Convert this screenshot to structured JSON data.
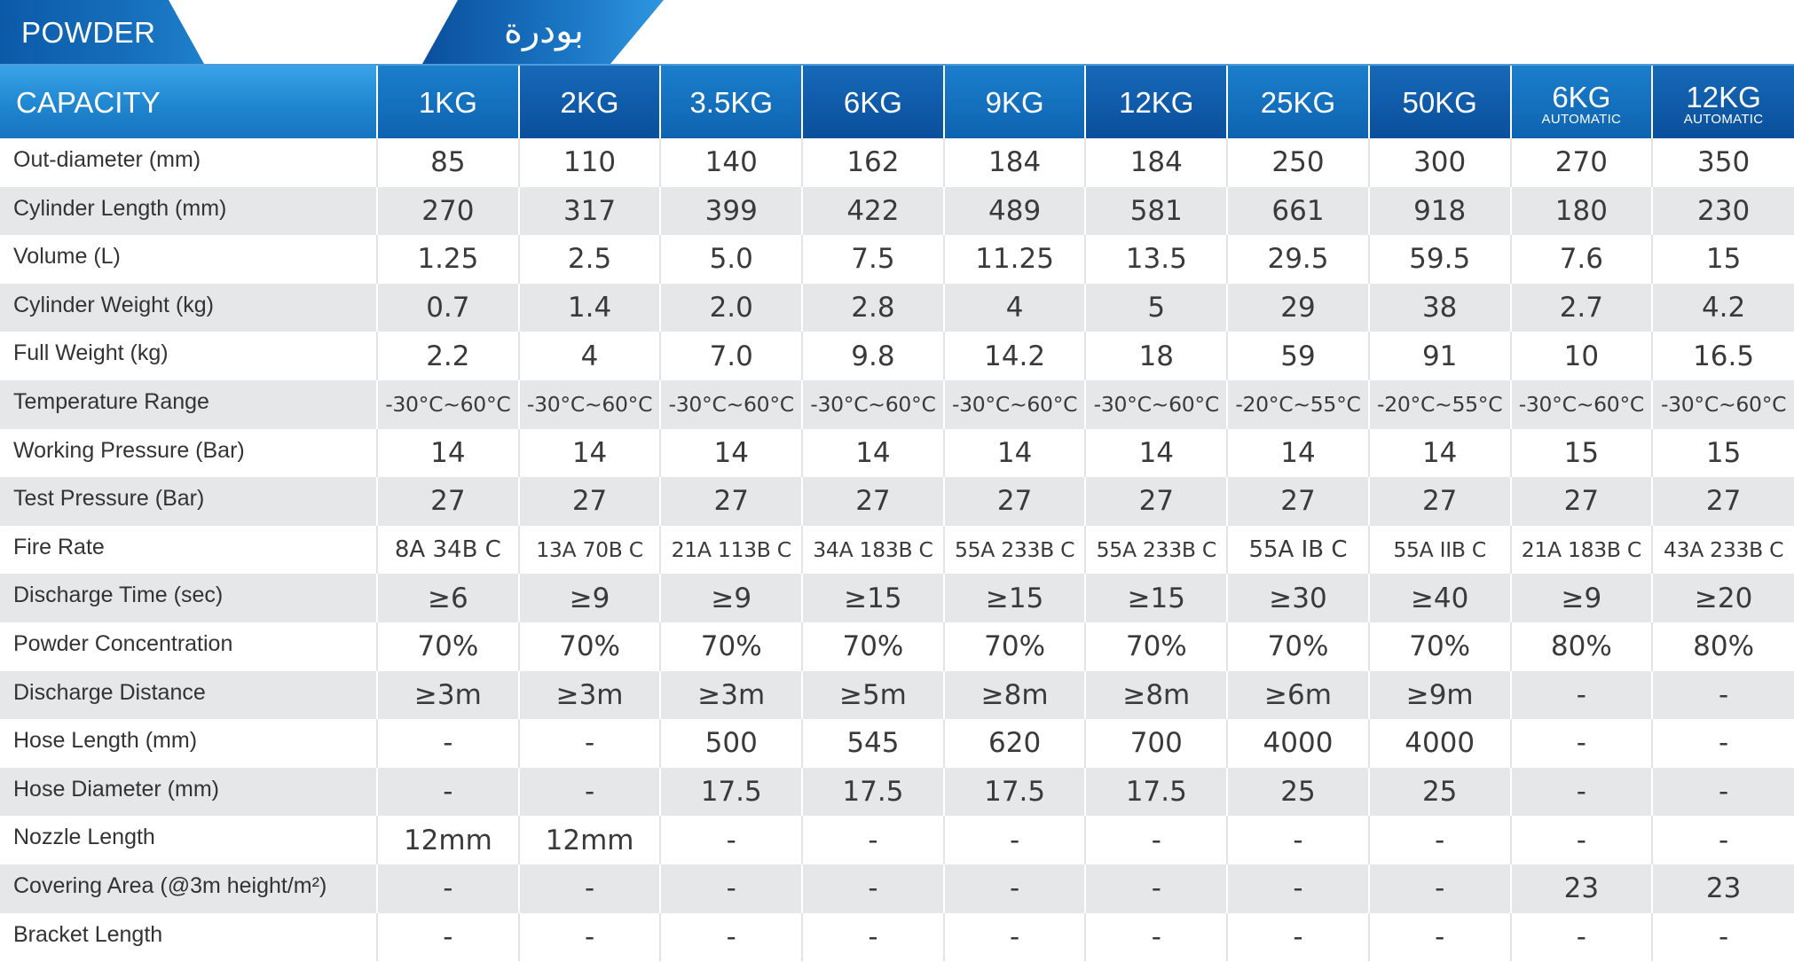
{
  "header": {
    "title_en": "POWDER",
    "title_ar": "بودرة"
  },
  "table": {
    "capacity_label": "CAPACITY",
    "columns": [
      {
        "main": "1KG",
        "sub": ""
      },
      {
        "main": "2KG",
        "sub": ""
      },
      {
        "main": "3.5KG",
        "sub": ""
      },
      {
        "main": "6KG",
        "sub": ""
      },
      {
        "main": "9KG",
        "sub": ""
      },
      {
        "main": "12KG",
        "sub": ""
      },
      {
        "main": "25KG",
        "sub": ""
      },
      {
        "main": "50KG",
        "sub": ""
      },
      {
        "main": "6KG",
        "sub": "AUTOMATIC"
      },
      {
        "main": "12KG",
        "sub": "AUTOMATIC"
      }
    ],
    "rows": [
      {
        "label": "Out-diameter (mm)",
        "values": [
          "85",
          "110",
          "140",
          "162",
          "184",
          "184",
          "250",
          "300",
          "270",
          "350"
        ]
      },
      {
        "label": "Cylinder Length (mm)",
        "values": [
          "270",
          "317",
          "399",
          "422",
          "489",
          "581",
          "661",
          "918",
          "180",
          "230"
        ]
      },
      {
        "label": "Volume (L)",
        "values": [
          "1.25",
          "2.5",
          "5.0",
          "7.5",
          "11.25",
          "13.5",
          "29.5",
          "59.5",
          "7.6",
          "15"
        ]
      },
      {
        "label": "Cylinder Weight (kg)",
        "values": [
          "0.7",
          "1.4",
          "2.0",
          "2.8",
          "4",
          "5",
          "29",
          "38",
          "2.7",
          "4.2"
        ]
      },
      {
        "label": "Full Weight (kg)",
        "values": [
          "2.2",
          "4",
          "7.0",
          "9.8",
          "14.2",
          "18",
          "59",
          "91",
          "10",
          "16.5"
        ]
      },
      {
        "label": "Temperature Range",
        "values": [
          "-30°C~60°C",
          "-30°C~60°C",
          "-30°C~60°C",
          "-30°C~60°C",
          "-30°C~60°C",
          "-30°C~60°C",
          "-20°C~55°C",
          "-20°C~55°C",
          "-30°C~60°C",
          "-30°C~60°C"
        ]
      },
      {
        "label": "Working Pressure (Bar)",
        "values": [
          "14",
          "14",
          "14",
          "14",
          "14",
          "14",
          "14",
          "14",
          "15",
          "15"
        ]
      },
      {
        "label": "Test Pressure (Bar)",
        "values": [
          "27",
          "27",
          "27",
          "27",
          "27",
          "27",
          "27",
          "27",
          "27",
          "27"
        ]
      },
      {
        "label": "Fire Rate",
        "values": [
          "8A 34B C",
          "13A 70B C",
          "21A 113B C",
          "34A 183B C",
          "55A 233B C",
          "55A 233B C",
          "55A IB C",
          "55A IIB C",
          "21A 183B C",
          "43A 233B C"
        ]
      },
      {
        "label": "Discharge Time (sec)",
        "values": [
          "≥6",
          "≥9",
          "≥9",
          "≥15",
          "≥15",
          "≥15",
          "≥30",
          "≥40",
          "≥9",
          "≥20"
        ]
      },
      {
        "label": "Powder Concentration",
        "values": [
          "70%",
          "70%",
          "70%",
          "70%",
          "70%",
          "70%",
          "70%",
          "70%",
          "80%",
          "80%"
        ]
      },
      {
        "label": "Discharge Distance",
        "values": [
          "≥3m",
          "≥3m",
          "≥3m",
          "≥5m",
          "≥8m",
          "≥8m",
          "≥6m",
          "≥9m",
          "-",
          "-"
        ]
      },
      {
        "label": "Hose Length (mm)",
        "values": [
          "-",
          "-",
          "500",
          "545",
          "620",
          "700",
          "4000",
          "4000",
          "-",
          "-"
        ]
      },
      {
        "label": "Hose Diameter (mm)",
        "values": [
          "-",
          "-",
          "17.5",
          "17.5",
          "17.5",
          "17.5",
          "25",
          "25",
          "-",
          "-"
        ]
      },
      {
        "label": "Nozzle Length",
        "values": [
          "12mm",
          "12mm",
          "-",
          "-",
          "-",
          "-",
          "-",
          "-",
          "-",
          "-"
        ]
      },
      {
        "label": "Covering Area (@3m height/m²)",
        "values": [
          "-",
          "-",
          "-",
          "-",
          "-",
          "-",
          "-",
          "-",
          "23",
          "23"
        ]
      },
      {
        "label": "Bracket Length",
        "values": [
          "-",
          "-",
          "-",
          "-",
          "-",
          "-",
          "-",
          "-",
          "-",
          "-"
        ]
      }
    ]
  }
}
